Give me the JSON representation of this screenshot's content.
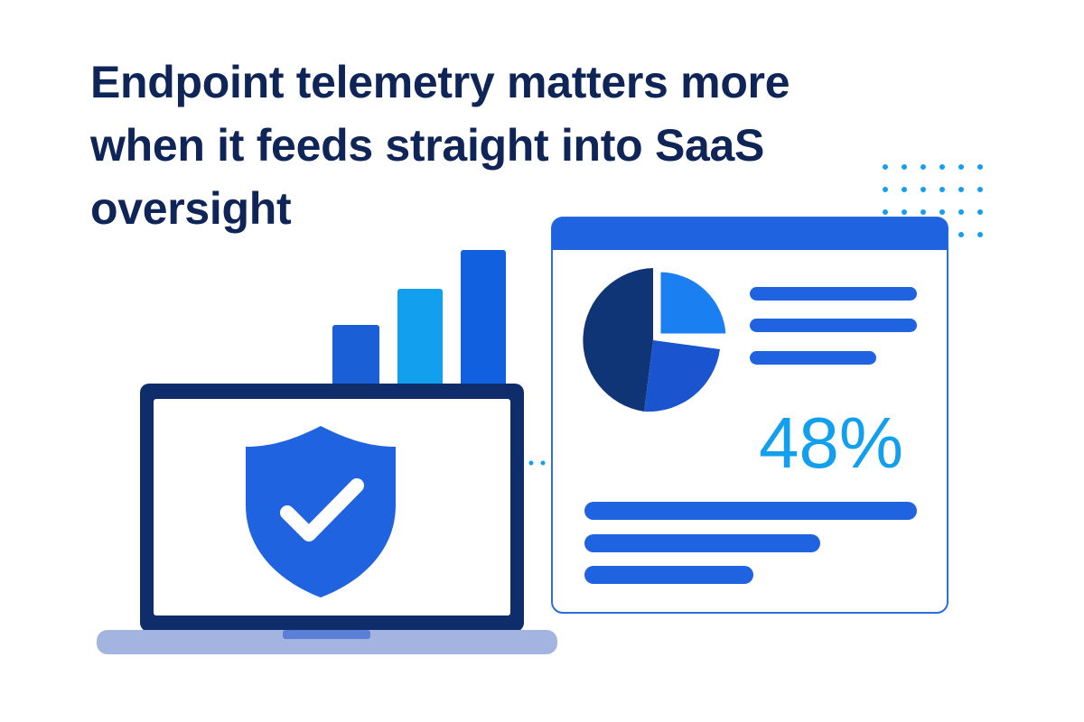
{
  "header": {
    "title": "Endpoint telemetry matters more when it feeds straight into SaaS oversight"
  },
  "dashboard": {
    "stat": "48%"
  }
}
